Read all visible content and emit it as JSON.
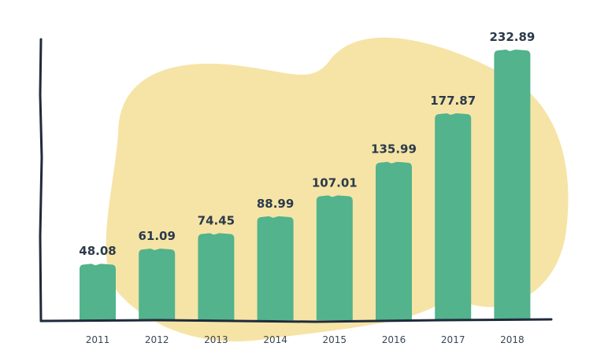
{
  "chart_data": {
    "type": "bar",
    "categories": [
      "2011",
      "2012",
      "2013",
      "2014",
      "2015",
      "2016",
      "2017",
      "2018"
    ],
    "values": [
      48.08,
      61.09,
      74.45,
      88.99,
      107.01,
      135.99,
      177.87,
      232.89
    ],
    "value_labels": [
      "48.08",
      "61.09",
      "74.45",
      "88.99",
      "107.01",
      "135.99",
      "177.87",
      "232.89"
    ],
    "title": "",
    "xlabel": "",
    "ylabel": "",
    "ylim": [
      0,
      260
    ],
    "grid": false,
    "legend": "none",
    "colors": {
      "bar": "#52b38c",
      "blob": "#f6e4a6",
      "axis": "#1f2a3c",
      "text": "#2b3a4a"
    }
  }
}
